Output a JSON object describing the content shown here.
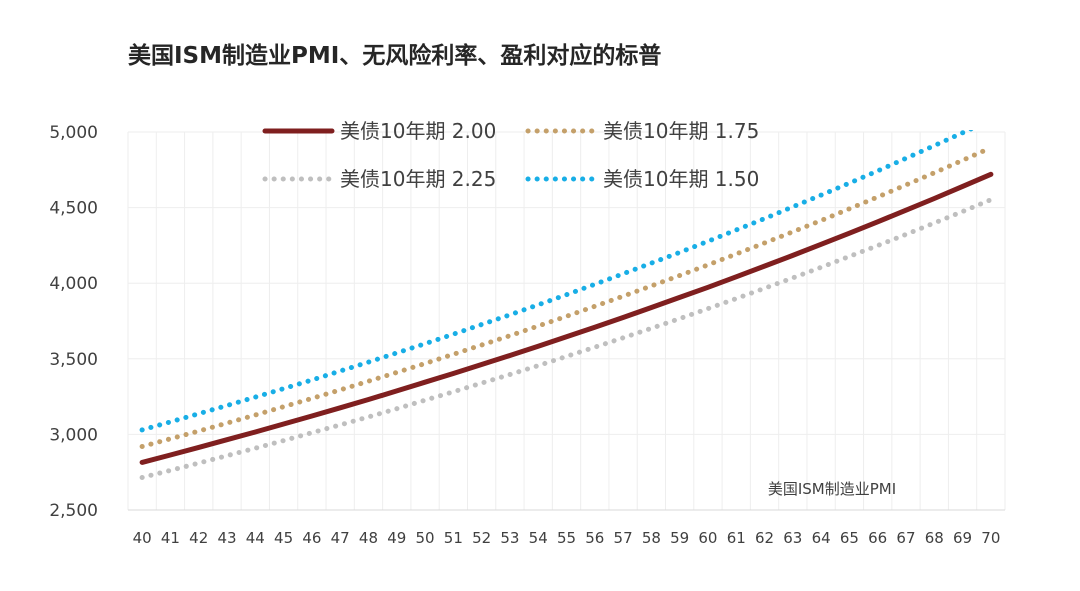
{
  "chart_data": {
    "type": "line",
    "title": "美国ISM制造业PMI、无风险利率、盈利对应的标普",
    "xlabel": "美国ISM制造业PMI",
    "ylabel": "",
    "x": [
      40,
      41,
      42,
      43,
      44,
      45,
      46,
      47,
      48,
      49,
      50,
      51,
      52,
      53,
      54,
      55,
      56,
      57,
      58,
      59,
      60,
      61,
      62,
      63,
      64,
      65,
      66,
      67,
      68,
      69,
      70
    ],
    "ylim": [
      2500,
      5000
    ],
    "yticks": [
      2500,
      3000,
      3500,
      4000,
      4500,
      5000
    ],
    "ytick_labels": [
      "2,500",
      "3,000",
      "3,500",
      "4,000",
      "4,500",
      "5,000"
    ],
    "grid": true,
    "legend_position": "top",
    "series": [
      {
        "name": "美债10年期 2.00",
        "style": "solid",
        "color": "#7f1f1f",
        "values": [
          2815,
          2864,
          2914,
          2965,
          3016,
          3069,
          3122,
          3176,
          3231,
          3288,
          3345,
          3403,
          3462,
          3522,
          3583,
          3646,
          3709,
          3773,
          3839,
          3906,
          3973,
          4042,
          4113,
          4184,
          4257,
          4331,
          4406,
          4483,
          4560,
          4640,
          4720
        ]
      },
      {
        "name": "美债10年期 1.75",
        "style": "dotted",
        "color": "#c4a06a",
        "values": [
          2920,
          2971,
          3022,
          3075,
          3128,
          3183,
          3238,
          3294,
          3352,
          3410,
          3469,
          3530,
          3591,
          3653,
          3717,
          3781,
          3847,
          3914,
          3982,
          4051,
          4121,
          4193,
          4266,
          4340,
          4415,
          4492,
          4570,
          4650,
          4730,
          4813,
          4896
        ]
      },
      {
        "name": "美债10年期 2.25",
        "style": "dotted",
        "color": "#bfbfbf",
        "values": [
          2715,
          2762,
          2810,
          2859,
          2909,
          2959,
          3011,
          3063,
          3116,
          3170,
          3226,
          3282,
          3339,
          3396,
          3455,
          3516,
          3577,
          3639,
          3702,
          3766,
          3832,
          3898,
          3966,
          4035,
          4105,
          4177,
          4249,
          4323,
          4398,
          4474,
          4552
        ]
      },
      {
        "name": "美债10年期 1.50",
        "style": "dotted",
        "color": "#18aee6",
        "values": [
          3030,
          3083,
          3137,
          3191,
          3247,
          3303,
          3360,
          3419,
          3478,
          3539,
          3600,
          3663,
          3727,
          3791,
          3857,
          3924,
          3993,
          4062,
          4133,
          4204,
          4277,
          4352,
          4427,
          4505,
          4583,
          4662,
          4743,
          4826,
          4910,
          4995,
          5082
        ]
      }
    ]
  }
}
